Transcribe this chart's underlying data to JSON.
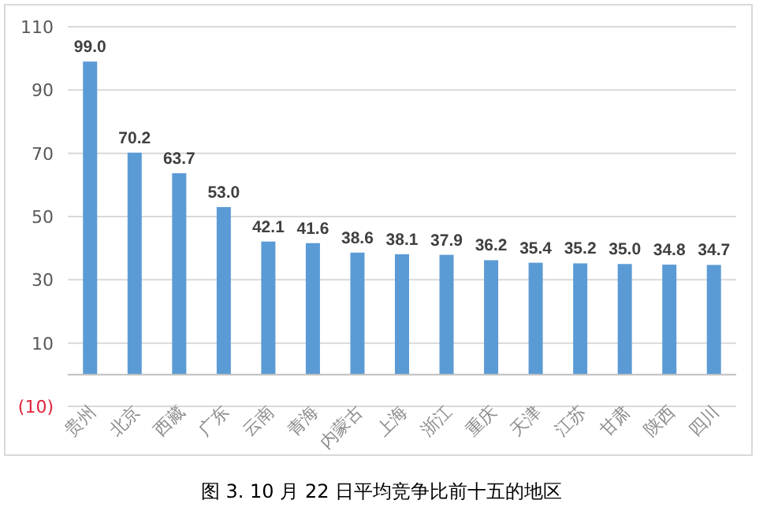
{
  "chart_data": {
    "type": "bar",
    "title": "图 3. 10 月 22 日平均竞争比前十五的地区",
    "categories": [
      "贵州",
      "北京",
      "西藏",
      "广东",
      "云南",
      "青海",
      "内蒙古",
      "上海",
      "浙江",
      "重庆",
      "天津",
      "江苏",
      "甘肃",
      "陕西",
      "四川"
    ],
    "values": [
      99.0,
      70.2,
      63.7,
      53.0,
      42.1,
      41.6,
      38.6,
      38.1,
      37.9,
      36.2,
      35.4,
      35.2,
      35.0,
      34.8,
      34.7
    ],
    "value_labels": [
      "99.0",
      "70.2",
      "63.7",
      "53.0",
      "42.1",
      "41.6",
      "38.6",
      "38.1",
      "37.9",
      "36.2",
      "35.4",
      "35.2",
      "35.0",
      "34.8",
      "34.7"
    ],
    "color": "#5b9bd5",
    "ylim": [
      -10,
      110
    ],
    "yticks": [
      {
        "value": -10,
        "label": "(10)"
      },
      10,
      30,
      50,
      70,
      90,
      110
    ],
    "grid": "y"
  }
}
